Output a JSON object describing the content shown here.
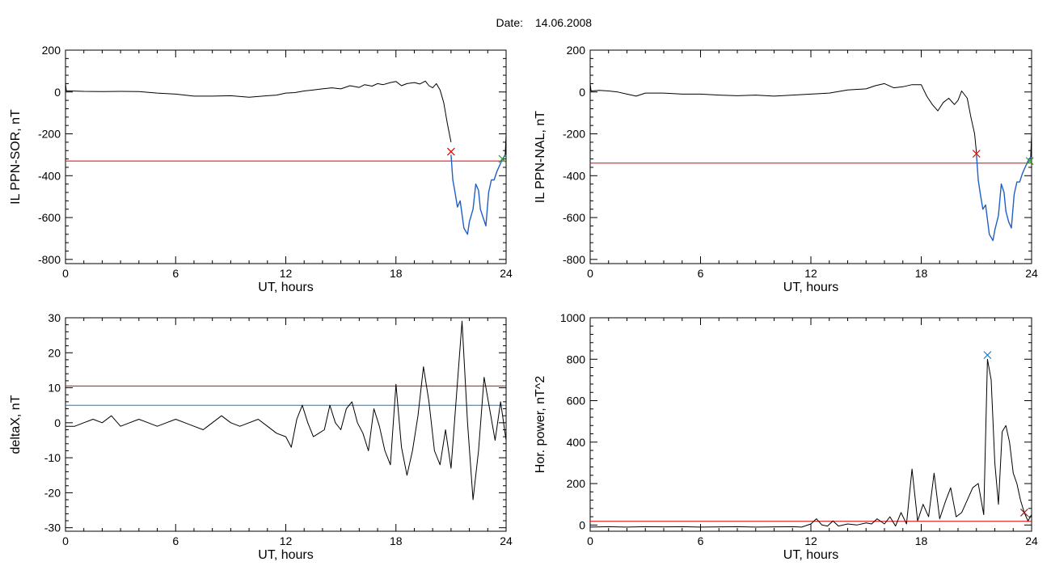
{
  "figure": {
    "title_label": "Date:",
    "title_date": "14.06.2008"
  },
  "chart_data": [
    {
      "type": "line",
      "xlabel": "UT, hours",
      "ylabel": "IL PPN-SOR, nT",
      "xlim": [
        0,
        24
      ],
      "ylim": [
        -820,
        200
      ],
      "xticks": [
        0,
        6,
        12,
        18,
        24
      ],
      "yticks": [
        -800,
        -600,
        -400,
        -200,
        0,
        200
      ],
      "grid": false,
      "series": [
        {
          "color": "#000000",
          "role": "index",
          "x": [
            0,
            0.05,
            0.3,
            1,
            2,
            3,
            4,
            5,
            6,
            7,
            8,
            9,
            10,
            11,
            11.5,
            12,
            12.5,
            13,
            13.5,
            14,
            14.5,
            15,
            15.5,
            16,
            16.3,
            16.7,
            17,
            17.3,
            17.7,
            18,
            18.3,
            18.6,
            19,
            19.3,
            19.6,
            19.8,
            20,
            20.2,
            20.4,
            20.6,
            20.8,
            21.0
          ],
          "y": [
            40,
            5,
            5,
            3,
            2,
            3,
            2,
            -5,
            -10,
            -20,
            -20,
            -18,
            -25,
            -18,
            -15,
            -5,
            -3,
            5,
            10,
            15,
            20,
            15,
            30,
            22,
            35,
            28,
            40,
            35,
            45,
            50,
            30,
            40,
            45,
            38,
            52,
            30,
            20,
            40,
            10,
            -50,
            -150,
            -240
          ]
        },
        {
          "color": "#1f5fc8",
          "role": "substorm",
          "x": [
            21.0,
            21.1,
            21.2,
            21.35,
            21.5,
            21.7,
            21.9,
            22.0,
            22.2,
            22.35,
            22.5,
            22.6,
            22.75,
            22.9,
            23.05,
            23.2,
            23.35,
            23.5,
            23.65,
            23.8,
            23.95
          ],
          "y": [
            -300,
            -420,
            -470,
            -550,
            -520,
            -650,
            -680,
            -620,
            -560,
            -440,
            -470,
            -560,
            -600,
            -640,
            -480,
            -420,
            -420,
            -380,
            -350,
            -320,
            -300
          ]
        },
        {
          "color": "#000000",
          "role": "tail",
          "x": [
            23.95,
            24.0
          ],
          "y": [
            -300,
            -200
          ]
        }
      ],
      "threshold": {
        "y": -330,
        "color": "#e00000"
      },
      "markers": [
        {
          "x": 21.0,
          "y": -285,
          "color": "#e00000",
          "symbol": "x"
        },
        {
          "x": 23.8,
          "y": -320,
          "color": "#2ca02c",
          "symbol": "x"
        }
      ]
    },
    {
      "type": "line",
      "xlabel": "UT, hours",
      "ylabel": "IL PPN-NAL, nT",
      "xlim": [
        0,
        24
      ],
      "ylim": [
        -820,
        200
      ],
      "xticks": [
        0,
        6,
        12,
        18,
        24
      ],
      "yticks": [
        -800,
        -600,
        -400,
        -200,
        0,
        200
      ],
      "grid": false,
      "series": [
        {
          "color": "#000000",
          "role": "index",
          "x": [
            0,
            0.05,
            0.5,
            1,
            1.5,
            2,
            2.5,
            3,
            4,
            5,
            6,
            7,
            8,
            9,
            10,
            11,
            12,
            13,
            14,
            15,
            15.5,
            16,
            16.5,
            17,
            17.5,
            18,
            18.3,
            18.6,
            18.9,
            19.2,
            19.5,
            19.8,
            20,
            20.2,
            20.5,
            20.7,
            20.9,
            21.0
          ],
          "y": [
            40,
            5,
            8,
            5,
            0,
            -10,
            -20,
            -5,
            -5,
            -10,
            -10,
            -15,
            -18,
            -15,
            -20,
            -15,
            -10,
            -5,
            10,
            15,
            30,
            40,
            20,
            25,
            35,
            35,
            -20,
            -60,
            -90,
            -50,
            -30,
            -60,
            -40,
            5,
            -30,
            -120,
            -200,
            -290
          ]
        },
        {
          "color": "#1f5fc8",
          "role": "substorm",
          "x": [
            21.0,
            21.1,
            21.2,
            21.35,
            21.5,
            21.7,
            21.9,
            22.0,
            22.2,
            22.35,
            22.5,
            22.6,
            22.75,
            22.9,
            23.05,
            23.2,
            23.35,
            23.5,
            23.65,
            23.8,
            23.95
          ],
          "y": [
            -300,
            -420,
            -480,
            -560,
            -540,
            -680,
            -710,
            -660,
            -590,
            -440,
            -480,
            -570,
            -620,
            -650,
            -490,
            -430,
            -430,
            -390,
            -360,
            -330,
            -310
          ]
        },
        {
          "color": "#000000",
          "role": "tail",
          "x": [
            23.95,
            24.0
          ],
          "y": [
            -310,
            -200
          ]
        }
      ],
      "threshold": {
        "y": -340,
        "color": "#e00000"
      },
      "markers": [
        {
          "x": 21.0,
          "y": -295,
          "color": "#e00000",
          "symbol": "x"
        },
        {
          "x": 23.9,
          "y": -330,
          "color": "#2ca02c",
          "symbol": "x"
        }
      ]
    },
    {
      "type": "line",
      "xlabel": "UT, hours",
      "ylabel": "deltaX, nT",
      "xlim": [
        0,
        24
      ],
      "ylim": [
        -31,
        30
      ],
      "xticks": [
        0,
        6,
        12,
        18,
        24
      ],
      "yticks": [
        -30,
        -20,
        -10,
        0,
        10,
        20,
        30
      ],
      "grid": false,
      "series": [
        {
          "color": "#000000",
          "role": "deltaX",
          "x": [
            0,
            0.5,
            1,
            1.5,
            2,
            2.5,
            3,
            3.5,
            4,
            4.5,
            5,
            5.5,
            6,
            6.5,
            7,
            7.5,
            8,
            8.5,
            9,
            9.5,
            10,
            10.5,
            11,
            11.5,
            12,
            12.3,
            12.6,
            12.9,
            13.2,
            13.5,
            13.8,
            14.1,
            14.4,
            14.7,
            15,
            15.3,
            15.6,
            15.9,
            16.2,
            16.5,
            16.8,
            17.1,
            17.4,
            17.7,
            18.0,
            18.3,
            18.6,
            18.9,
            19.2,
            19.5,
            19.8,
            20.1,
            20.4,
            20.7,
            21.0,
            21.3,
            21.6,
            21.9,
            22.2,
            22.5,
            22.8,
            23.1,
            23.4,
            23.7,
            24.0
          ],
          "y": [
            -1,
            -1,
            0,
            1,
            0,
            2,
            -1,
            0,
            1,
            0,
            -1,
            0,
            1,
            0,
            -1,
            -2,
            0,
            2,
            0,
            -1,
            0,
            1,
            -1,
            -3,
            -4,
            -7,
            1,
            5,
            0,
            -4,
            -3,
            -2,
            5,
            0,
            -2,
            4,
            6,
            0,
            -3,
            -8,
            4,
            -1,
            -8,
            -12,
            11,
            -7,
            -15,
            -8,
            2,
            16,
            6,
            -8,
            -12,
            -2,
            -13,
            8,
            29,
            0,
            -22,
            -8,
            13,
            4,
            -5,
            6,
            -5
          ]
        }
      ],
      "thresholds": [
        {
          "y": 10.5,
          "color": "#e00000"
        },
        {
          "y": 5,
          "color": "#1f77c8"
        }
      ]
    },
    {
      "type": "line",
      "xlabel": "UT, hours",
      "ylabel": "Hor. power, nT^2",
      "xlim": [
        0,
        24
      ],
      "ylim": [
        -30,
        1000
      ],
      "xticks": [
        0,
        6,
        12,
        18,
        24
      ],
      "yticks": [
        0,
        200,
        400,
        600,
        800,
        1000
      ],
      "grid": false,
      "series": [
        {
          "color": "#000000",
          "role": "power",
          "x": [
            0,
            1,
            2,
            3,
            4,
            5,
            6,
            7,
            8,
            9,
            10,
            11,
            11.5,
            12,
            12.3,
            12.6,
            12.9,
            13.2,
            13.5,
            14,
            14.5,
            15,
            15.3,
            15.6,
            16,
            16.3,
            16.6,
            16.9,
            17.2,
            17.5,
            17.8,
            18.1,
            18.4,
            18.7,
            19,
            19.3,
            19.6,
            19.9,
            20.2,
            20.5,
            20.8,
            21.1,
            21.4,
            21.6,
            21.8,
            22.0,
            22.2,
            22.4,
            22.6,
            22.8,
            23.0,
            23.2,
            23.4,
            23.6,
            23.8,
            24.0
          ],
          "y": [
            -10,
            -8,
            -10,
            -8,
            -9,
            -8,
            -10,
            -9,
            -8,
            -10,
            -9,
            -8,
            -10,
            5,
            30,
            0,
            -5,
            20,
            -5,
            5,
            0,
            10,
            5,
            30,
            5,
            40,
            -5,
            60,
            5,
            270,
            20,
            100,
            40,
            250,
            30,
            110,
            180,
            40,
            60,
            120,
            180,
            200,
            50,
            800,
            700,
            300,
            100,
            450,
            480,
            400,
            250,
            200,
            120,
            60,
            20,
            50
          ]
        }
      ],
      "threshold": {
        "y": 18,
        "color": "#e00000"
      },
      "markers": [
        {
          "x": 21.6,
          "y": 820,
          "color": "#1f77c8",
          "symbol": "x"
        },
        {
          "x": 23.6,
          "y": 60,
          "color": "#8a2020",
          "symbol": "x"
        }
      ]
    }
  ]
}
